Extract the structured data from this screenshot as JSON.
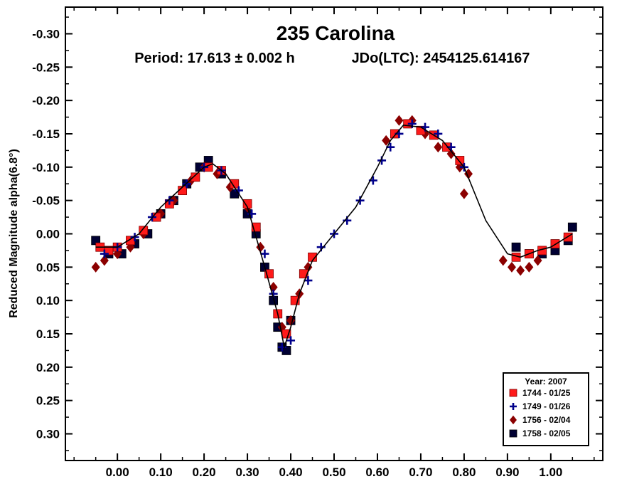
{
  "chart_data": {
    "type": "scatter",
    "title": "235 Carolina",
    "subtitle_period": "Period: 17.613 ± 0.002 h",
    "subtitle_epoch": "JDo(LTC): 2454125.614167",
    "ylabel": "Reduced Magnitude alpha(6.8°)",
    "xlabel": "",
    "xlim": [
      -0.12,
      1.12
    ],
    "ylim": [
      -0.34,
      0.34
    ],
    "y_inverted": true,
    "grid": false,
    "x_ticks": [
      "0.00",
      "0.10",
      "0.20",
      "0.30",
      "0.40",
      "0.50",
      "0.60",
      "0.70",
      "0.80",
      "0.90",
      "1.00"
    ],
    "x_tick_values": [
      0.0,
      0.1,
      0.2,
      0.3,
      0.4,
      0.5,
      0.6,
      0.7,
      0.8,
      0.9,
      1.0
    ],
    "y_ticks": [
      "-0.30",
      "-0.25",
      "-0.20",
      "-0.15",
      "-0.10",
      "-0.05",
      "0.00",
      "0.05",
      "0.10",
      "0.15",
      "0.20",
      "0.25",
      "0.30"
    ],
    "y_tick_values": [
      -0.3,
      -0.25,
      -0.2,
      -0.15,
      -0.1,
      -0.05,
      0.0,
      0.05,
      0.1,
      0.15,
      0.2,
      0.25,
      0.3
    ],
    "legend": {
      "title": "Year: 2007",
      "position": "bottom-right",
      "entries": [
        {
          "label": "1744 - 01/25",
          "marker": "square",
          "color": "#ff1a1a"
        },
        {
          "label": "1749 - 01/26",
          "marker": "plus",
          "color": "#00008b"
        },
        {
          "label": "1756 - 02/04",
          "marker": "diamond",
          "color": "#8b0000"
        },
        {
          "label": "1758 - 02/05",
          "marker": "filled-square",
          "color": "#000033"
        }
      ]
    },
    "fit_curve": {
      "name": "Fourier fit",
      "color": "#000000",
      "x": [
        -0.05,
        0.0,
        0.05,
        0.1,
        0.15,
        0.2,
        0.22,
        0.25,
        0.3,
        0.34,
        0.37,
        0.385,
        0.4,
        0.42,
        0.45,
        0.5,
        0.55,
        0.6,
        0.63,
        0.66,
        0.7,
        0.75,
        0.8,
        0.85,
        0.9,
        0.93,
        0.97,
        1.0,
        1.05
      ],
      "y": [
        0.02,
        0.02,
        0.0,
        -0.04,
        -0.07,
        -0.1,
        -0.105,
        -0.09,
        -0.04,
        0.05,
        0.12,
        0.17,
        0.14,
        0.09,
        0.04,
        0.0,
        -0.04,
        -0.1,
        -0.14,
        -0.163,
        -0.16,
        -0.14,
        -0.1,
        -0.02,
        0.03,
        0.035,
        0.025,
        0.02,
        0.0
      ]
    },
    "series": [
      {
        "name": "1744 - 01/25",
        "marker": "square",
        "color": "#ff1a1a",
        "x": [
          -0.04,
          -0.02,
          0.0,
          0.03,
          0.06,
          0.09,
          0.12,
          0.15,
          0.18,
          0.21,
          0.24,
          0.27,
          0.3,
          0.32,
          0.35,
          0.37,
          0.39,
          0.41,
          0.43,
          0.45,
          0.64,
          0.67,
          0.7,
          0.73,
          0.76,
          0.79,
          0.92,
          0.95,
          0.98,
          1.01,
          1.04
        ],
        "y": [
          0.02,
          0.025,
          0.02,
          0.01,
          -0.005,
          -0.025,
          -0.045,
          -0.065,
          -0.085,
          -0.1,
          -0.095,
          -0.075,
          -0.045,
          -0.01,
          0.06,
          0.12,
          0.15,
          0.1,
          0.06,
          0.035,
          -0.15,
          -0.165,
          -0.155,
          -0.148,
          -0.13,
          -0.11,
          0.035,
          0.03,
          0.025,
          0.015,
          0.005
        ]
      },
      {
        "name": "1749 - 01/26",
        "marker": "plus",
        "color": "#00008b",
        "x": [
          -0.03,
          0.0,
          0.04,
          0.08,
          0.12,
          0.16,
          0.2,
          0.24,
          0.28,
          0.31,
          0.34,
          0.36,
          0.38,
          0.4,
          0.44,
          0.47,
          0.5,
          0.53,
          0.56,
          0.59,
          0.61,
          0.63,
          0.65,
          0.68,
          0.71,
          0.74,
          0.77,
          0.8
        ],
        "y": [
          0.03,
          0.02,
          0.005,
          -0.025,
          -0.05,
          -0.075,
          -0.1,
          -0.095,
          -0.065,
          -0.03,
          0.03,
          0.09,
          0.17,
          0.16,
          0.07,
          0.02,
          0.0,
          -0.02,
          -0.05,
          -0.08,
          -0.11,
          -0.13,
          -0.15,
          -0.165,
          -0.16,
          -0.15,
          -0.13,
          -0.1
        ]
      },
      {
        "name": "1756 - 02/04",
        "marker": "diamond",
        "color": "#8b0000",
        "x": [
          -0.05,
          -0.03,
          0.0,
          0.03,
          0.06,
          0.1,
          0.13,
          0.17,
          0.2,
          0.23,
          0.26,
          0.3,
          0.33,
          0.36,
          0.38,
          0.4,
          0.42,
          0.44,
          0.62,
          0.65,
          0.68,
          0.71,
          0.74,
          0.77,
          0.79,
          0.8,
          0.81,
          0.89,
          0.91,
          0.93,
          0.95,
          0.97
        ],
        "y": [
          0.05,
          0.04,
          0.03,
          0.02,
          0.0,
          -0.03,
          -0.05,
          -0.08,
          -0.1,
          -0.09,
          -0.07,
          -0.04,
          0.02,
          0.08,
          0.14,
          0.13,
          0.09,
          0.05,
          -0.14,
          -0.17,
          -0.17,
          -0.15,
          -0.13,
          -0.12,
          -0.1,
          -0.06,
          -0.09,
          0.04,
          0.05,
          0.055,
          0.05,
          0.04
        ]
      },
      {
        "name": "1758 - 02/05",
        "marker": "filled-square",
        "color": "#000033",
        "x": [
          -0.05,
          -0.02,
          0.01,
          0.04,
          0.07,
          0.1,
          0.13,
          0.16,
          0.19,
          0.21,
          0.24,
          0.27,
          0.3,
          0.32,
          0.34,
          0.36,
          0.37,
          0.38,
          0.39,
          0.4,
          0.92,
          0.95,
          0.98,
          1.01,
          1.04,
          1.05
        ],
        "y": [
          0.01,
          0.03,
          0.03,
          0.015,
          0.0,
          -0.03,
          -0.05,
          -0.075,
          -0.1,
          -0.11,
          -0.09,
          -0.06,
          -0.03,
          0.0,
          0.05,
          0.1,
          0.14,
          0.17,
          0.175,
          0.13,
          0.02,
          0.03,
          0.03,
          0.025,
          0.01,
          -0.01
        ]
      }
    ]
  }
}
